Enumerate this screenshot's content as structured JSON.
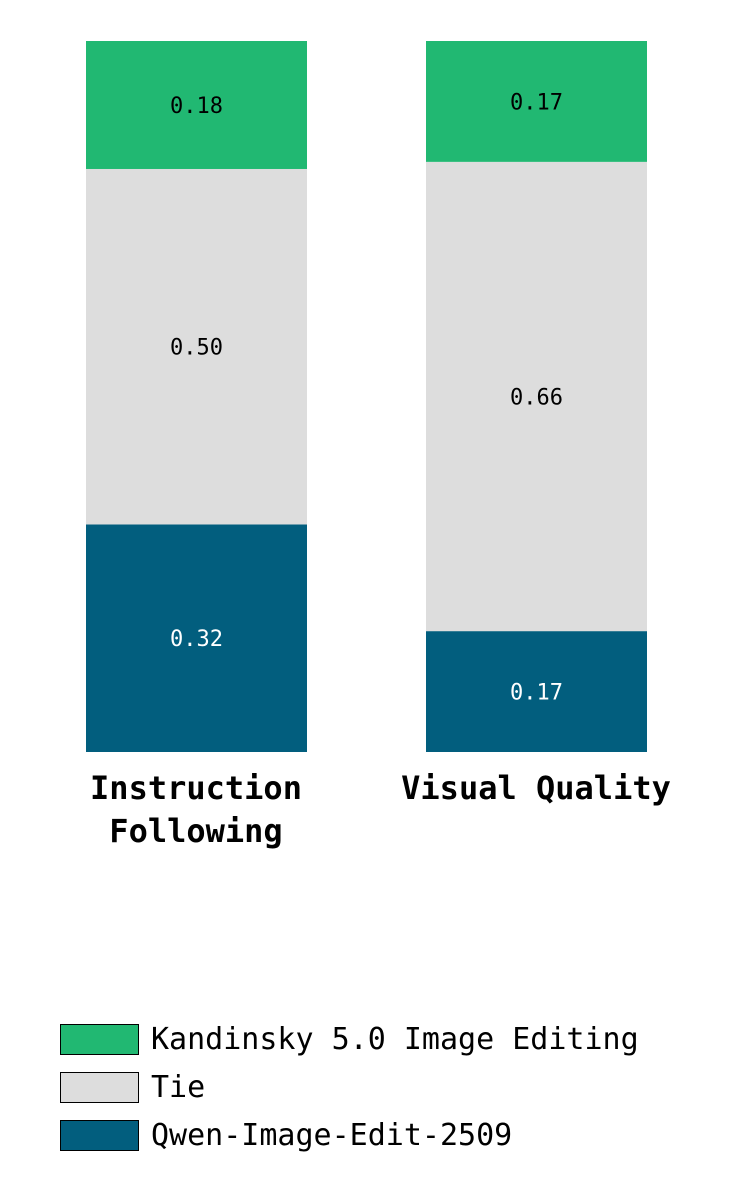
{
  "chart_data": {
    "type": "bar",
    "stacked": true,
    "orientation": "vertical",
    "categories": [
      "Instruction Following",
      "Visual Quality"
    ],
    "series": [
      {
        "name": "Qwen-Image-Edit-2509",
        "color": "#025e7e",
        "label_color": "#ffffff",
        "values": [
          0.32,
          0.17
        ],
        "labels": [
          "0.32",
          "0.17"
        ]
      },
      {
        "name": "Tie",
        "color": "#dddddd",
        "label_color": "#000000",
        "values": [
          0.5,
          0.66
        ],
        "labels": [
          "0.50",
          "0.66"
        ]
      },
      {
        "name": "Kandinsky 5.0 Image Editing",
        "color": "#21b872",
        "label_color": "#000000",
        "values": [
          0.18,
          0.17
        ],
        "labels": [
          "0.18",
          "0.17"
        ]
      }
    ],
    "ylim": [
      0,
      1
    ],
    "grid": false,
    "axes_visible": false,
    "legend_position": "bottom"
  },
  "category_labels": [
    "Instruction\nFollowing",
    "Visual Quality"
  ],
  "legend": [
    {
      "label": "Kandinsky 5.0 Image Editing",
      "color": "#21b872"
    },
    {
      "label": "Tie",
      "color": "#dddddd"
    },
    {
      "label": "Qwen-Image-Edit-2509",
      "color": "#025e7e"
    }
  ]
}
